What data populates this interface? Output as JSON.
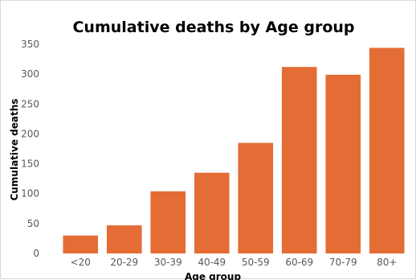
{
  "chart_data": {
    "type": "bar",
    "title": "Cumulative deaths by Age group",
    "xlabel": "Age group",
    "ylabel": "Cumulative deaths",
    "categories": [
      "<20",
      "20-29",
      "30-39",
      "40-49",
      "50-59",
      "60-69",
      "70-79",
      "80+"
    ],
    "values": [
      30,
      47,
      104,
      135,
      185,
      312,
      299,
      344
    ],
    "ylim": [
      0,
      350
    ],
    "yticks": [
      0,
      50,
      100,
      150,
      200,
      250,
      300,
      350
    ],
    "grid": false,
    "legend": "none",
    "bar_color": "#E46C35"
  }
}
